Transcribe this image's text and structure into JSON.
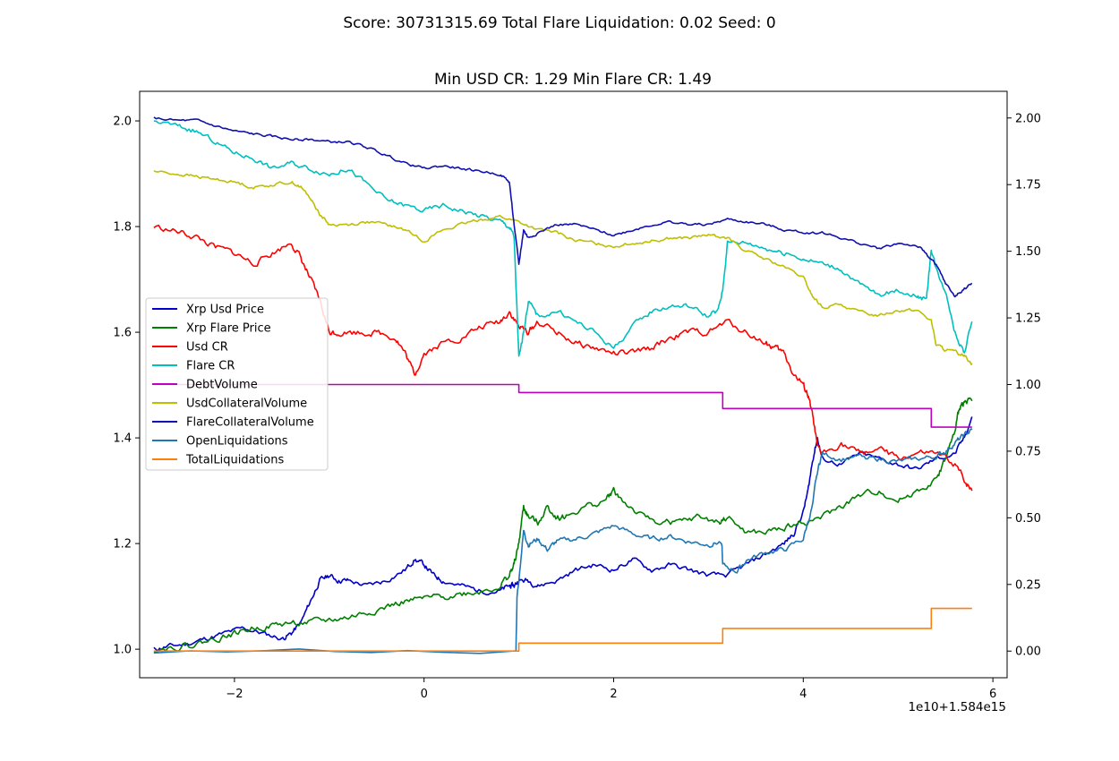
{
  "suptitle": "Score: 30731315.69 Total Flare Liquidation: 0.02 Seed: 0",
  "title": "Min USD CR: 1.29 Min Flare CR: 1.49",
  "offset_text": "1e10+1.584e15",
  "chart_data": {
    "type": "line",
    "x_offset_label": "1e10+1.584e15",
    "xlim": [
      -3.0,
      6.15
    ],
    "xticks": [
      -2,
      0,
      2,
      4,
      6
    ],
    "left_axis": {
      "ylim": [
        0.946,
        2.056
      ],
      "ticks": [
        1.0,
        1.2,
        1.4,
        1.6,
        1.8,
        2.0
      ],
      "tick_labels": [
        "1.0",
        "1.2",
        "1.4",
        "1.6",
        "1.8",
        "2.0"
      ]
    },
    "right_axis": {
      "ylim": [
        -0.1,
        2.1
      ],
      "ticks": [
        0.0,
        0.25,
        0.5,
        0.75,
        1.0,
        1.25,
        1.5,
        1.75,
        2.0
      ],
      "tick_labels": [
        "0.00",
        "0.25",
        "0.50",
        "0.75",
        "1.00",
        "1.25",
        "1.50",
        "1.75",
        "2.00"
      ]
    },
    "legend_position": "center-left",
    "series": [
      {
        "name": "Xrp Usd Price",
        "color": "#0000cc",
        "axis": "left",
        "noise": 0.004,
        "seed": 11,
        "x": [
          -2.85,
          -2.7,
          -2.5,
          -2.3,
          -2.1,
          -1.9,
          -1.7,
          -1.5,
          -1.4,
          -1.3,
          -1.2,
          -1.1,
          -1.0,
          -0.9,
          -0.8,
          -0.6,
          -0.4,
          -0.2,
          -0.1,
          0.0,
          0.1,
          0.2,
          0.4,
          0.6,
          0.8,
          0.9,
          0.95,
          1.0,
          1.1,
          1.2,
          1.4,
          1.6,
          1.8,
          2.0,
          2.2,
          2.4,
          2.6,
          2.8,
          3.0,
          3.2,
          3.4,
          3.6,
          3.8,
          3.9,
          4.0,
          4.05,
          4.1,
          4.15,
          4.2,
          4.4,
          4.6,
          4.8,
          5.0,
          5.2,
          5.4,
          5.6,
          5.7,
          5.78
        ],
        "y": [
          1.0,
          1.005,
          1.01,
          1.02,
          1.03,
          1.04,
          1.03,
          1.02,
          1.03,
          1.05,
          1.09,
          1.13,
          1.14,
          1.13,
          1.13,
          1.12,
          1.13,
          1.15,
          1.17,
          1.16,
          1.14,
          1.13,
          1.12,
          1.11,
          1.11,
          1.12,
          1.12,
          1.13,
          1.13,
          1.12,
          1.13,
          1.15,
          1.16,
          1.15,
          1.17,
          1.15,
          1.16,
          1.15,
          1.14,
          1.14,
          1.16,
          1.18,
          1.2,
          1.22,
          1.26,
          1.3,
          1.36,
          1.4,
          1.36,
          1.35,
          1.37,
          1.36,
          1.35,
          1.34,
          1.36,
          1.37,
          1.4,
          1.44
        ]
      },
      {
        "name": "Xrp Flare Price",
        "color": "#008000",
        "axis": "left",
        "noise": 0.005,
        "seed": 22,
        "x": [
          -2.85,
          -2.6,
          -2.4,
          -2.2,
          -2.0,
          -1.8,
          -1.6,
          -1.4,
          -1.2,
          -1.0,
          -0.8,
          -0.6,
          -0.4,
          -0.2,
          0.0,
          0.2,
          0.4,
          0.6,
          0.8,
          0.9,
          0.95,
          1.0,
          1.05,
          1.1,
          1.2,
          1.3,
          1.4,
          1.5,
          1.7,
          1.9,
          2.0,
          2.1,
          2.3,
          2.5,
          2.7,
          2.9,
          3.1,
          3.2,
          3.4,
          3.6,
          3.8,
          4.0,
          4.2,
          4.4,
          4.6,
          4.8,
          5.0,
          5.2,
          5.4,
          5.5,
          5.6,
          5.65,
          5.7,
          5.78
        ],
        "y": [
          1.0,
          1.005,
          1.01,
          1.02,
          1.03,
          1.04,
          1.045,
          1.05,
          1.05,
          1.055,
          1.06,
          1.07,
          1.08,
          1.09,
          1.095,
          1.1,
          1.105,
          1.11,
          1.12,
          1.14,
          1.16,
          1.2,
          1.27,
          1.25,
          1.24,
          1.27,
          1.25,
          1.25,
          1.27,
          1.28,
          1.3,
          1.28,
          1.25,
          1.24,
          1.24,
          1.25,
          1.24,
          1.25,
          1.22,
          1.22,
          1.23,
          1.24,
          1.25,
          1.27,
          1.29,
          1.3,
          1.28,
          1.3,
          1.32,
          1.36,
          1.41,
          1.46,
          1.47,
          1.47
        ]
      },
      {
        "name": "Usd CR",
        "color": "#ff0000",
        "axis": "left",
        "noise": 0.005,
        "seed": 33,
        "x": [
          -2.85,
          -2.6,
          -2.4,
          -2.2,
          -2.0,
          -1.8,
          -1.6,
          -1.4,
          -1.3,
          -1.2,
          -1.1,
          -1.0,
          -0.9,
          -0.7,
          -0.5,
          -0.3,
          -0.2,
          -0.1,
          0.0,
          0.2,
          0.4,
          0.6,
          0.8,
          0.9,
          1.0,
          1.1,
          1.2,
          1.4,
          1.6,
          1.8,
          2.0,
          2.2,
          2.4,
          2.6,
          2.8,
          3.0,
          3.2,
          3.4,
          3.6,
          3.7,
          3.8,
          3.9,
          4.0,
          4.05,
          4.1,
          4.15,
          4.2,
          4.4,
          4.6,
          4.8,
          5.0,
          5.2,
          5.4,
          5.6,
          5.7,
          5.78
        ],
        "y": [
          1.8,
          1.79,
          1.78,
          1.76,
          1.75,
          1.73,
          1.75,
          1.77,
          1.74,
          1.7,
          1.66,
          1.6,
          1.6,
          1.6,
          1.6,
          1.59,
          1.56,
          1.52,
          1.56,
          1.58,
          1.59,
          1.61,
          1.62,
          1.64,
          1.61,
          1.6,
          1.62,
          1.6,
          1.58,
          1.57,
          1.56,
          1.56,
          1.57,
          1.59,
          1.6,
          1.6,
          1.62,
          1.6,
          1.58,
          1.57,
          1.56,
          1.52,
          1.5,
          1.48,
          1.44,
          1.38,
          1.37,
          1.39,
          1.37,
          1.38,
          1.36,
          1.37,
          1.37,
          1.35,
          1.32,
          1.3
        ]
      },
      {
        "name": "Flare CR",
        "color": "#00bfbf",
        "axis": "left",
        "noise": 0.004,
        "seed": 44,
        "x": [
          -2.85,
          -2.6,
          -2.4,
          -2.2,
          -2.0,
          -1.8,
          -1.6,
          -1.4,
          -1.2,
          -1.0,
          -0.8,
          -0.6,
          -0.4,
          -0.2,
          0.0,
          0.2,
          0.4,
          0.6,
          0.8,
          0.9,
          0.95,
          1.0,
          1.05,
          1.1,
          1.2,
          1.4,
          1.6,
          1.8,
          2.0,
          2.2,
          2.4,
          2.6,
          2.8,
          3.0,
          3.1,
          3.15,
          3.2,
          3.4,
          3.6,
          3.8,
          4.0,
          4.2,
          4.4,
          4.6,
          4.8,
          5.0,
          5.2,
          5.3,
          5.35,
          5.4,
          5.5,
          5.6,
          5.7,
          5.78
        ],
        "y": [
          2.0,
          1.99,
          1.98,
          1.96,
          1.94,
          1.93,
          1.91,
          1.92,
          1.91,
          1.9,
          1.91,
          1.88,
          1.85,
          1.84,
          1.83,
          1.84,
          1.83,
          1.82,
          1.81,
          1.8,
          1.78,
          1.55,
          1.6,
          1.66,
          1.63,
          1.64,
          1.62,
          1.6,
          1.57,
          1.61,
          1.64,
          1.65,
          1.65,
          1.63,
          1.64,
          1.68,
          1.77,
          1.77,
          1.76,
          1.75,
          1.74,
          1.73,
          1.72,
          1.69,
          1.67,
          1.68,
          1.67,
          1.66,
          1.76,
          1.72,
          1.68,
          1.6,
          1.56,
          1.62
        ]
      },
      {
        "name": "DebtVolume",
        "color": "#bf00bf",
        "axis": "right",
        "noise": 0,
        "seed": 0,
        "step": true,
        "x": [
          -2.85,
          1.0,
          3.15,
          5.35,
          5.78
        ],
        "y": [
          1.0,
          0.97,
          0.91,
          0.84,
          0.84
        ]
      },
      {
        "name": "UsdCollateralVolume",
        "color": "#bfbf00",
        "axis": "right",
        "noise": 0.005,
        "seed": 55,
        "x": [
          -2.85,
          -2.6,
          -2.4,
          -2.2,
          -2.0,
          -1.8,
          -1.6,
          -1.4,
          -1.3,
          -1.2,
          -1.1,
          -1.0,
          -0.8,
          -0.6,
          -0.4,
          -0.2,
          0.0,
          0.2,
          0.4,
          0.6,
          0.8,
          1.0,
          1.2,
          1.4,
          1.6,
          1.8,
          2.0,
          2.2,
          2.4,
          2.6,
          2.8,
          3.0,
          3.2,
          3.4,
          3.6,
          3.8,
          4.0,
          4.1,
          4.2,
          4.4,
          4.6,
          4.8,
          5.0,
          5.2,
          5.35,
          5.4,
          5.5,
          5.6,
          5.7,
          5.78
        ],
        "y": [
          1.8,
          1.79,
          1.78,
          1.77,
          1.76,
          1.74,
          1.75,
          1.76,
          1.74,
          1.7,
          1.64,
          1.6,
          1.6,
          1.61,
          1.6,
          1.58,
          1.54,
          1.58,
          1.6,
          1.62,
          1.63,
          1.61,
          1.58,
          1.57,
          1.54,
          1.53,
          1.52,
          1.53,
          1.54,
          1.55,
          1.55,
          1.56,
          1.55,
          1.5,
          1.47,
          1.44,
          1.4,
          1.33,
          1.29,
          1.3,
          1.27,
          1.26,
          1.28,
          1.28,
          1.24,
          1.15,
          1.13,
          1.12,
          1.11,
          1.08
        ]
      },
      {
        "name": "FlareCollateralVolume",
        "color": "#1010b0",
        "axis": "right",
        "noise": 0.004,
        "seed": 66,
        "x": [
          -2.85,
          -2.6,
          -2.4,
          -2.2,
          -2.0,
          -1.8,
          -1.6,
          -1.4,
          -1.2,
          -1.0,
          -0.8,
          -0.6,
          -0.4,
          -0.2,
          0.0,
          0.2,
          0.4,
          0.6,
          0.8,
          0.9,
          0.95,
          1.0,
          1.05,
          1.1,
          1.2,
          1.4,
          1.6,
          1.8,
          2.0,
          2.2,
          2.4,
          2.6,
          2.8,
          3.0,
          3.2,
          3.4,
          3.6,
          3.8,
          4.0,
          4.2,
          4.4,
          4.6,
          4.8,
          5.0,
          5.2,
          5.3,
          5.4,
          5.5,
          5.6,
          5.7,
          5.78
        ],
        "y": [
          2.0,
          1.99,
          1.99,
          1.97,
          1.95,
          1.94,
          1.93,
          1.92,
          1.92,
          1.91,
          1.91,
          1.89,
          1.86,
          1.83,
          1.81,
          1.82,
          1.81,
          1.8,
          1.79,
          1.76,
          1.6,
          1.45,
          1.58,
          1.55,
          1.57,
          1.6,
          1.6,
          1.58,
          1.56,
          1.58,
          1.6,
          1.61,
          1.6,
          1.6,
          1.62,
          1.61,
          1.6,
          1.58,
          1.57,
          1.57,
          1.55,
          1.53,
          1.51,
          1.53,
          1.52,
          1.49,
          1.45,
          1.38,
          1.33,
          1.36,
          1.38
        ]
      },
      {
        "name": "OpenLiquidations",
        "color": "#1f77b4",
        "axis": "right",
        "noise": 0.008,
        "seed": 77,
        "x": [
          -2.85,
          0.97,
          0.98,
          1.05,
          1.1,
          1.2,
          1.3,
          1.4,
          1.6,
          1.8,
          2.0,
          2.2,
          2.4,
          2.6,
          2.8,
          3.0,
          3.14,
          3.15,
          3.3,
          3.4,
          3.6,
          3.8,
          4.0,
          4.1,
          4.15,
          4.2,
          4.4,
          4.6,
          4.8,
          5.0,
          5.2,
          5.4,
          5.5,
          5.6,
          5.7,
          5.78
        ],
        "y": [
          0.0,
          0.0,
          0.2,
          0.45,
          0.4,
          0.42,
          0.38,
          0.41,
          0.42,
          0.44,
          0.47,
          0.44,
          0.42,
          0.43,
          0.41,
          0.4,
          0.41,
          0.32,
          0.3,
          0.34,
          0.37,
          0.38,
          0.42,
          0.55,
          0.68,
          0.74,
          0.72,
          0.73,
          0.72,
          0.71,
          0.72,
          0.73,
          0.75,
          0.78,
          0.81,
          0.83
        ]
      },
      {
        "name": "TotalLiquidations",
        "color": "#ff7f0e",
        "axis": "right",
        "noise": 0,
        "seed": 0,
        "step": true,
        "x": [
          -2.85,
          1.0,
          3.15,
          5.35,
          5.78
        ],
        "y": [
          0.0,
          0.03,
          0.085,
          0.16,
          0.16
        ]
      }
    ]
  }
}
